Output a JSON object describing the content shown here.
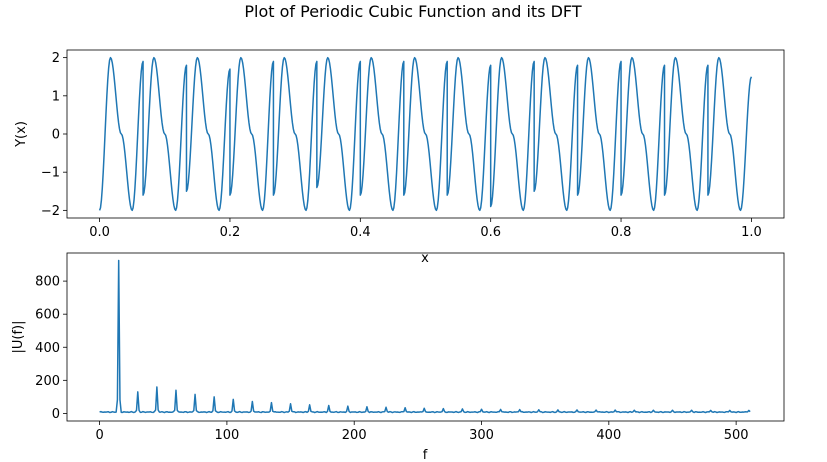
{
  "figure": {
    "title": "Plot of Periodic Cubic Function and its DFT"
  },
  "chart_data": [
    {
      "type": "line",
      "title": "",
      "xlabel": "x",
      "ylabel": "Y(x)",
      "xlim": [
        -0.05,
        1.05
      ],
      "ylim": [
        -2.2,
        2.2
      ],
      "xticks": [
        0.0,
        0.2,
        0.4,
        0.6,
        0.8,
        1.0
      ],
      "xtick_labels": [
        "0.0",
        "0.2",
        "0.4",
        "0.6",
        "0.8",
        "1.0"
      ],
      "yticks": [
        -2,
        -1,
        0,
        1,
        2
      ],
      "ytick_labels": [
        "−2",
        "−1",
        "0",
        "1",
        "2"
      ],
      "grid": false,
      "color": "#1f77b4",
      "series": [
        {
          "description_of_shape": "cubic oscillation, ~15 cycles over [0,1], amplitude 2, with a discontinuous jump roughly every 1/15",
          "x": [
            0.0,
            0.0167,
            0.0333,
            0.05,
            0.0667,
            0.0667,
            0.0833,
            0.1,
            0.1167,
            0.1333,
            0.1333,
            0.15,
            0.1667,
            0.1833,
            0.2,
            0.2,
            0.2167,
            0.2333,
            0.25,
            0.2667,
            0.2667,
            0.2833,
            0.3,
            0.3167,
            0.3333,
            0.3333,
            0.35,
            0.3667,
            0.3833,
            0.4,
            0.4,
            0.4167,
            0.4333,
            0.45,
            0.4667,
            0.4667,
            0.4833,
            0.5,
            0.5167,
            0.5333,
            0.5333,
            0.55,
            0.5667,
            0.5833,
            0.6,
            0.6,
            0.6167,
            0.6333,
            0.65,
            0.6667,
            0.6667,
            0.6833,
            0.7,
            0.7167,
            0.7333,
            0.7333,
            0.75,
            0.7667,
            0.7833,
            0.8,
            0.8,
            0.8167,
            0.8333,
            0.85,
            0.8667,
            0.8667,
            0.8833,
            0.9,
            0.9167,
            0.9333,
            0.9333,
            0.95,
            0.9667,
            0.9833,
            1.0
          ],
          "y": [
            -2.0,
            2.0,
            0.0,
            -2.0,
            1.9,
            -1.6,
            2.0,
            0.0,
            -2.0,
            1.8,
            -1.5,
            2.0,
            0.0,
            -2.0,
            1.7,
            -1.6,
            2.0,
            0.0,
            -2.0,
            1.9,
            -1.6,
            2.0,
            0.0,
            -2.0,
            1.9,
            -1.4,
            2.0,
            0.0,
            -2.0,
            1.9,
            -1.6,
            2.0,
            0.0,
            -2.0,
            1.9,
            -1.6,
            2.0,
            0.0,
            -2.0,
            1.9,
            -1.6,
            2.0,
            0.0,
            -2.0,
            1.8,
            -1.9,
            2.0,
            0.0,
            -2.0,
            1.9,
            -1.5,
            2.0,
            0.0,
            -2.0,
            1.8,
            -1.6,
            2.0,
            0.0,
            -2.0,
            1.9,
            -1.6,
            2.0,
            0.0,
            -2.0,
            1.8,
            -1.6,
            2.0,
            0.0,
            -2.0,
            1.8,
            -1.6,
            2.0,
            0.0,
            -2.0,
            1.5
          ]
        }
      ]
    },
    {
      "type": "line",
      "title": "",
      "xlabel": "f",
      "ylabel": "|U(f)|",
      "xlim": [
        -25.6,
        537.6
      ],
      "ylim": [
        -46,
        970
      ],
      "xticks": [
        0,
        100,
        200,
        300,
        400,
        500
      ],
      "xtick_labels": [
        "0",
        "100",
        "200",
        "300",
        "400",
        "500"
      ],
      "yticks": [
        0,
        200,
        400,
        600,
        800
      ],
      "ytick_labels": [
        "0",
        "200",
        "400",
        "600",
        "800"
      ],
      "grid": false,
      "color": "#1f77b4",
      "series": [
        {
          "fundamental": 15,
          "peaks": [
            {
              "f": 15,
              "mag": 925
            },
            {
              "f": 30,
              "mag": 130
            },
            {
              "f": 45,
              "mag": 160
            },
            {
              "f": 60,
              "mag": 140
            },
            {
              "f": 75,
              "mag": 115
            },
            {
              "f": 90,
              "mag": 100
            },
            {
              "f": 105,
              "mag": 85
            },
            {
              "f": 120,
              "mag": 72
            },
            {
              "f": 135,
              "mag": 65
            },
            {
              "f": 150,
              "mag": 58
            },
            {
              "f": 165,
              "mag": 52
            },
            {
              "f": 180,
              "mag": 48
            },
            {
              "f": 195,
              "mag": 44
            },
            {
              "f": 210,
              "mag": 40
            },
            {
              "f": 225,
              "mag": 37
            },
            {
              "f": 240,
              "mag": 34
            },
            {
              "f": 255,
              "mag": 31
            },
            {
              "f": 270,
              "mag": 29
            },
            {
              "f": 285,
              "mag": 27
            },
            {
              "f": 300,
              "mag": 25
            },
            {
              "f": 315,
              "mag": 24
            },
            {
              "f": 330,
              "mag": 23
            },
            {
              "f": 345,
              "mag": 22
            },
            {
              "f": 360,
              "mag": 21
            },
            {
              "f": 375,
              "mag": 21
            },
            {
              "f": 390,
              "mag": 20
            },
            {
              "f": 405,
              "mag": 20
            },
            {
              "f": 420,
              "mag": 19
            },
            {
              "f": 435,
              "mag": 19
            },
            {
              "f": 450,
              "mag": 19
            },
            {
              "f": 465,
              "mag": 19
            },
            {
              "f": 480,
              "mag": 18
            },
            {
              "f": 495,
              "mag": 18
            },
            {
              "f": 510,
              "mag": 18
            }
          ],
          "baseline": 8,
          "f_max": 511
        }
      ]
    }
  ]
}
